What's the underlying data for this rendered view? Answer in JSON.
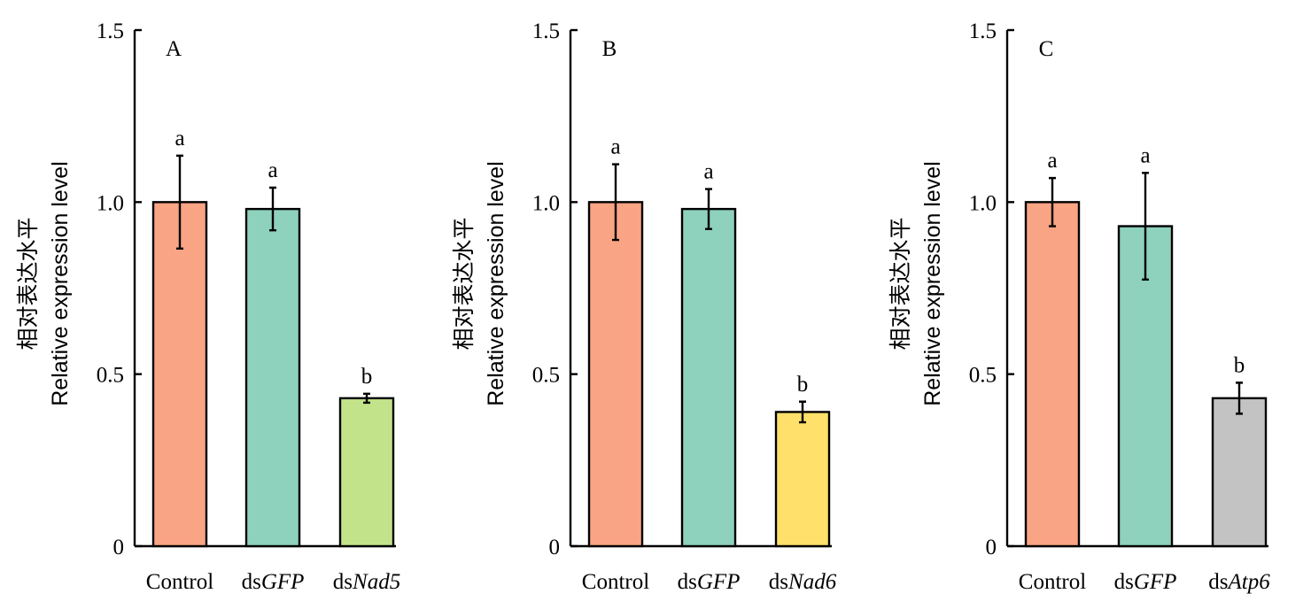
{
  "chart_data": [
    {
      "type": "bar",
      "panel": "A",
      "ylabel_cn": "相对表达水平",
      "ylabel": "Relative expression level",
      "ylim": [
        0,
        1.5
      ],
      "yticks": [
        "0",
        "0.5",
        "1.0",
        "1.5"
      ],
      "ytick_values": [
        0,
        0.5,
        1.0,
        1.5
      ],
      "categories": [
        {
          "prefix": "Control",
          "italic": ""
        },
        {
          "prefix": "ds",
          "italic": "GFP"
        },
        {
          "prefix": "ds",
          "italic": "Nad5"
        }
      ],
      "values": [
        1.0,
        0.98,
        0.43
      ],
      "errors": [
        0.135,
        0.062,
        0.013
      ],
      "significance": [
        "a",
        "a",
        "b"
      ],
      "colors": [
        "#F9A484",
        "#8ED1BD",
        "#C2E38A"
      ]
    },
    {
      "type": "bar",
      "panel": "B",
      "ylabel_cn": "相对表达水平",
      "ylabel": "Relative expression level",
      "ylim": [
        0,
        1.5
      ],
      "yticks": [
        "0",
        "0.5",
        "1.0",
        "1.5"
      ],
      "ytick_values": [
        0,
        0.5,
        1.0,
        1.5
      ],
      "categories": [
        {
          "prefix": "Control",
          "italic": ""
        },
        {
          "prefix": "ds",
          "italic": "GFP"
        },
        {
          "prefix": "ds",
          "italic": "Nad6"
        }
      ],
      "values": [
        1.0,
        0.98,
        0.39
      ],
      "errors": [
        0.11,
        0.058,
        0.03
      ],
      "significance": [
        "a",
        "a",
        "b"
      ],
      "colors": [
        "#F9A484",
        "#8ED1BD",
        "#FEE06A"
      ]
    },
    {
      "type": "bar",
      "panel": "C",
      "ylabel_cn": "相对表达水平",
      "ylabel": "Relative expression level",
      "ylim": [
        0,
        1.5
      ],
      "yticks": [
        "0",
        "0.5",
        "1.0",
        "1.5"
      ],
      "ytick_values": [
        0,
        0.5,
        1.0,
        1.5
      ],
      "categories": [
        {
          "prefix": "Control",
          "italic": ""
        },
        {
          "prefix": "ds",
          "italic": "GFP"
        },
        {
          "prefix": "ds",
          "italic": "Atp6"
        }
      ],
      "values": [
        1.0,
        0.93,
        0.43
      ],
      "errors": [
        0.07,
        0.155,
        0.045
      ],
      "significance": [
        "a",
        "a",
        "b"
      ],
      "colors": [
        "#F9A484",
        "#8ED1BD",
        "#C3C3C3"
      ]
    }
  ]
}
